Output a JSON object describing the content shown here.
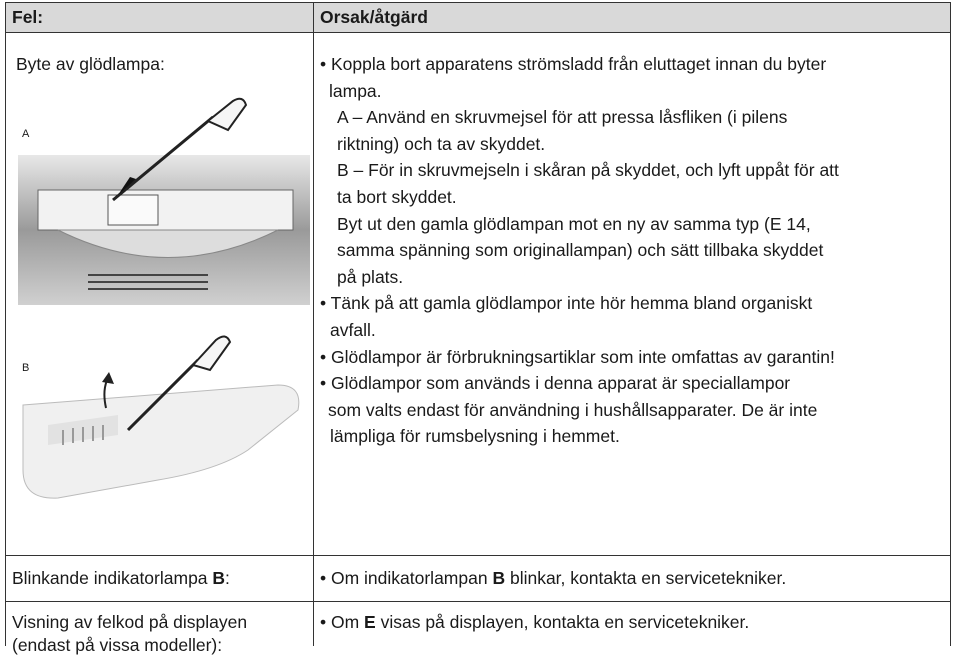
{
  "table": {
    "header": [
      "Fel:",
      "Orsak/åtgärd"
    ],
    "rows": [
      {
        "problem": "Byte av glödlampa:",
        "figure_labels": [
          "A",
          "B"
        ],
        "lines": [
          "• Koppla bort apparatens strömsladd från eluttaget innan du byter",
          "lampa.",
          "A – Använd en skruvmejsel för att pressa låsfliken (i pilens",
          "riktning) och ta av skyddet.",
          "B – För in skruvmejseln i skåran på skyddet, och lyft uppåt för att",
          "ta bort skyddet.",
          "Byt ut den gamla glödlampan mot en ny av samma typ (E 14,",
          "samma spänning som originallampan) och sätt tillbaka skyddet",
          "på plats.",
          "• Tänk på att gamla glödlampor inte hör hemma bland organiskt",
          "avfall.",
          "• Glödlampor är förbrukningsartiklar som inte omfattas av garantin!",
          "• Glödlampor som används i denna apparat är speciallampor",
          "som valts endast för användning i hushållsapparater. De är inte",
          "lämpliga för rumsbelysning i hemmet."
        ]
      },
      {
        "problem": [
          "Blinkande indikatorlampa ",
          "B",
          ":"
        ],
        "action": [
          "• Om indikatorlampan ",
          "B",
          " blinkar, kontakta en servicetekniker."
        ]
      },
      {
        "problem": [
          "Visning av felkod på displayen",
          "(endast på vissa modeller):"
        ],
        "action": [
          "• Om ",
          "E",
          " visas på displayen, kontakta en servicetekniker."
        ]
      }
    ]
  }
}
